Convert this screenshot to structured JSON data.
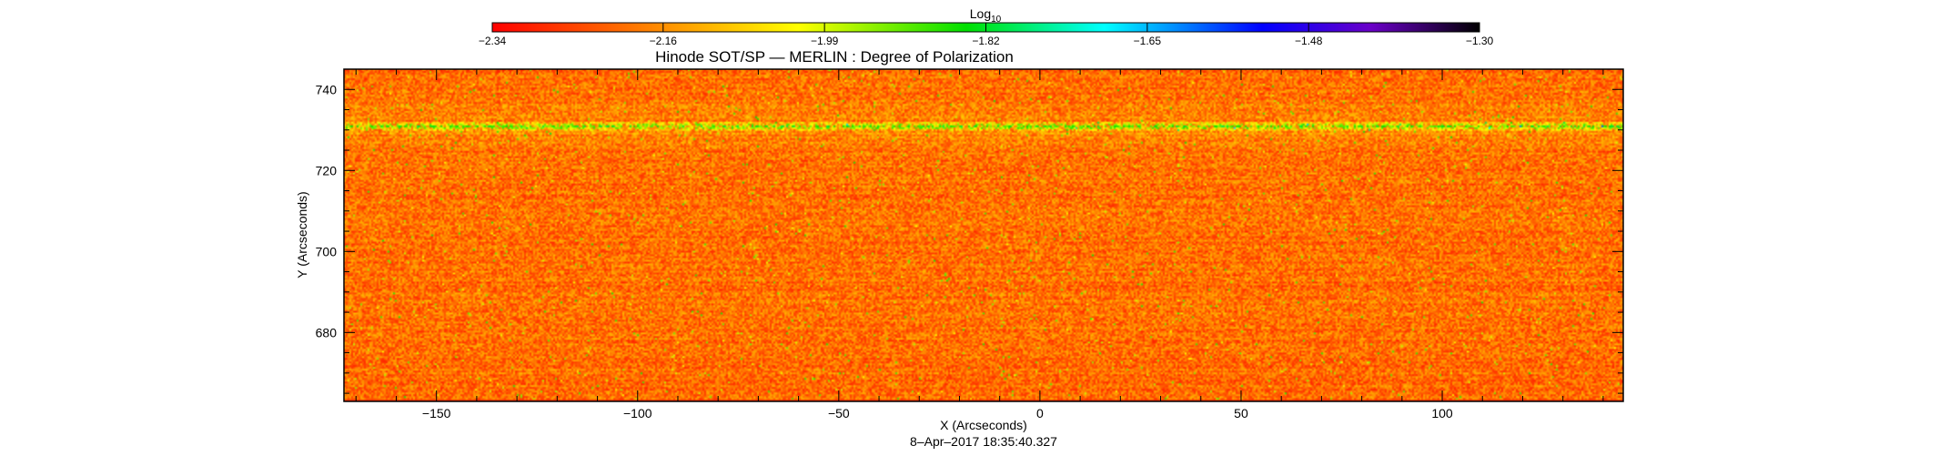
{
  "chart_data": {
    "type": "heatmap",
    "title": "Hinode SOT/SP — MERLIN : Degree of Polarization",
    "xlabel": "X (Arcseconds)",
    "ylabel": "Y (Arcseconds)",
    "timestamp": "8–Apr–2017  18:35:40.327",
    "xlim": [
      -173,
      145
    ],
    "ylim": [
      663,
      745
    ],
    "xticks": [
      -150,
      -100,
      -50,
      0,
      50,
      100
    ],
    "xtick_labels": [
      "−150",
      "−100",
      "−50",
      "0",
      "50",
      "100"
    ],
    "yticks": [
      680,
      700,
      720,
      740
    ],
    "ytick_labels": [
      "680",
      "700",
      "720",
      "740"
    ],
    "colorbar": {
      "label": "Log",
      "label_subscript": "10",
      "range": [
        -2.34,
        -1.3
      ],
      "ticks": [
        -2.34,
        -2.16,
        -1.99,
        -1.82,
        -1.65,
        -1.48,
        -1.3
      ],
      "tick_labels": [
        "−2.34",
        "−2.16",
        "−1.99",
        "−1.82",
        "−1.65",
        "−1.48",
        "−1.30"
      ],
      "colors": [
        "#ff0000",
        "#ff8c00",
        "#ffff00",
        "#00e000",
        "#00ffff",
        "#0000ff",
        "#6a00c8",
        "#000000"
      ]
    },
    "field_description_values": {
      "typical_log10_range": [
        -2.3,
        -2.05
      ],
      "bright_band_y": 731,
      "bright_band_value": -1.85
    }
  }
}
